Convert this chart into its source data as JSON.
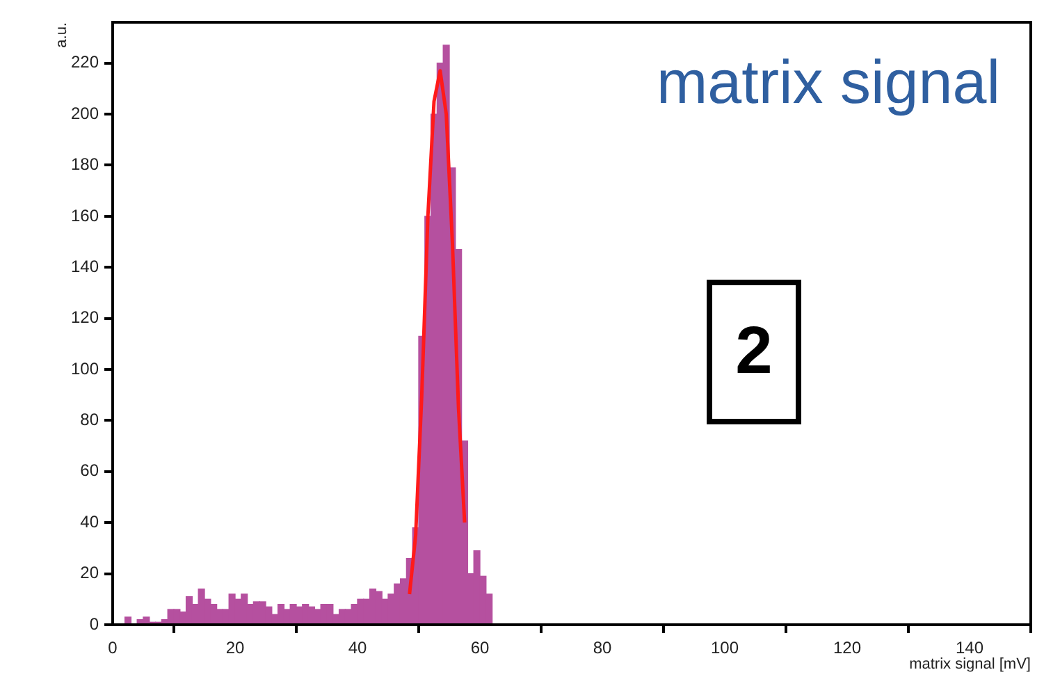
{
  "chart_data": {
    "type": "histogram",
    "xlabel": "matrix signal [mV]",
    "ylabel": "a.u.",
    "annotations": [
      "matrix signal",
      "2"
    ],
    "series": [
      {
        "color": "#b5509f",
        "bins": [
          0,
          1,
          2,
          3,
          4,
          5,
          6,
          7,
          8,
          9,
          10,
          11,
          12,
          13,
          14,
          15,
          16,
          17,
          18,
          19,
          20,
          21,
          22,
          23,
          24,
          25,
          26,
          27,
          28,
          29,
          30,
          31,
          32,
          33,
          34,
          35,
          36,
          37,
          38,
          39,
          40,
          41,
          42,
          43,
          44,
          45,
          46,
          47,
          48,
          49,
          50,
          51,
          52,
          53,
          54,
          55,
          56,
          57,
          58,
          59,
          60,
          61,
          62,
          63
        ],
        "values": [
          0,
          0,
          3,
          0,
          2,
          3,
          1,
          1,
          2,
          6,
          6,
          5,
          11,
          8,
          14,
          10,
          8,
          6,
          6,
          12,
          10,
          12,
          8,
          9,
          9,
          7,
          4,
          8,
          6,
          8,
          7,
          8,
          7,
          6,
          8,
          8,
          4,
          6,
          6,
          8,
          10,
          10,
          14,
          13,
          10,
          12,
          16,
          18,
          26,
          38,
          113,
          160,
          200,
          220,
          227,
          179,
          147,
          72,
          20,
          29,
          19,
          12,
          0
        ]
      },
      {
        "type": "line",
        "color": "#ff1a1a",
        "x": [
          48.5,
          49.5,
          50.5,
          51.5,
          52.5,
          53.5,
          54.5,
          55.5,
          56.5,
          57.5
        ],
        "values": [
          12,
          35,
          90,
          160,
          205,
          217,
          200,
          150,
          85,
          40
        ]
      }
    ],
    "xlim": [
      0,
      150
    ],
    "ylim": [
      0,
      236
    ],
    "xticks": [
      0,
      20,
      40,
      60,
      80,
      100,
      120,
      140
    ],
    "yticks": [
      0,
      20,
      40,
      60,
      80,
      100,
      120,
      140,
      160,
      180,
      200,
      220
    ],
    "grid": false,
    "legend": false,
    "marker": "none",
    "line_style": "solid"
  }
}
